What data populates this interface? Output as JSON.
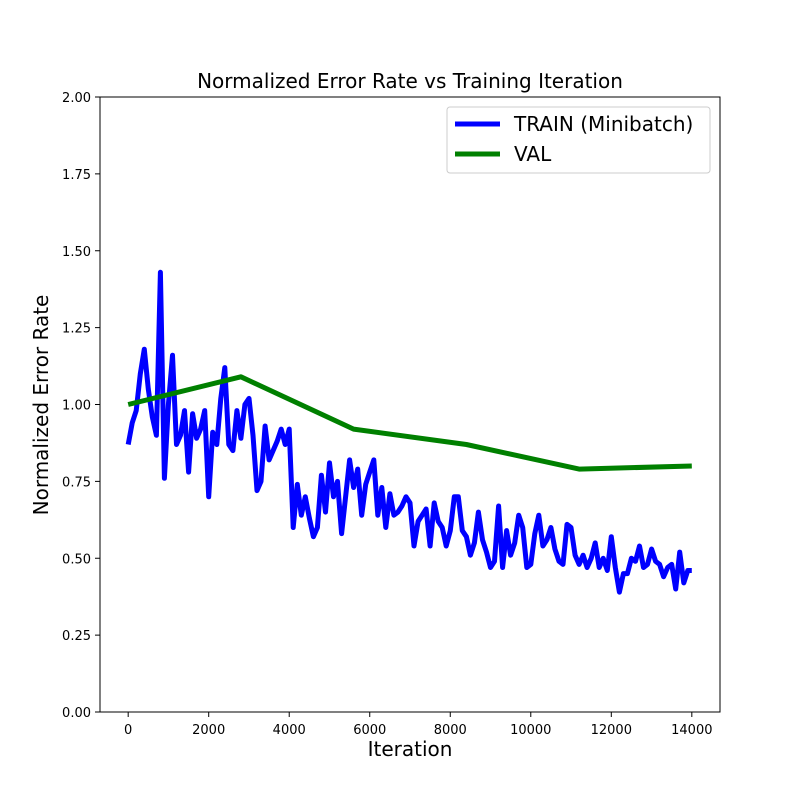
{
  "chart_data": {
    "type": "line",
    "title": "Normalized Error Rate vs Training Iteration",
    "xlabel": "Iteration",
    "ylabel": "Normalized Error Rate",
    "xlim": [
      -700,
      14700
    ],
    "ylim": [
      0,
      2.0
    ],
    "xticks": [
      0,
      2000,
      4000,
      6000,
      8000,
      10000,
      12000,
      14000
    ],
    "xtick_labels": [
      "0",
      "2000",
      "4000",
      "6000",
      "8000",
      "10000",
      "12000",
      "14000"
    ],
    "yticks": [
      0,
      0.25,
      0.5,
      0.75,
      1.0,
      1.25,
      1.5,
      1.75,
      2.0
    ],
    "ytick_labels": [
      "0.00",
      "0.25",
      "0.50",
      "0.75",
      "1.00",
      "1.25",
      "1.50",
      "1.75",
      "2.00"
    ],
    "grid": false,
    "legend_position": "top-right",
    "series": [
      {
        "name": "TRAIN (Minibatch)",
        "color": "#0000ff",
        "x": [
          0,
          100,
          200,
          300,
          400,
          500,
          600,
          700,
          800,
          900,
          1000,
          1100,
          1200,
          1300,
          1400,
          1500,
          1600,
          1700,
          1800,
          1900,
          2000,
          2100,
          2200,
          2300,
          2400,
          2500,
          2600,
          2700,
          2800,
          2900,
          3000,
          3100,
          3200,
          3300,
          3400,
          3500,
          3600,
          3700,
          3800,
          3900,
          4000,
          4100,
          4200,
          4300,
          4400,
          4500,
          4600,
          4700,
          4800,
          4900,
          5000,
          5100,
          5200,
          5300,
          5400,
          5500,
          5600,
          5700,
          5800,
          5900,
          6000,
          6100,
          6200,
          6300,
          6400,
          6500,
          6600,
          6700,
          6800,
          6900,
          7000,
          7100,
          7200,
          7300,
          7400,
          7500,
          7600,
          7700,
          7800,
          7900,
          8000,
          8100,
          8200,
          8300,
          8400,
          8500,
          8600,
          8700,
          8800,
          8900,
          9000,
          9100,
          9200,
          9300,
          9400,
          9500,
          9600,
          9700,
          9800,
          9900,
          10000,
          10100,
          10200,
          10300,
          10400,
          10500,
          10600,
          10700,
          10800,
          10900,
          11000,
          11100,
          11200,
          11300,
          11400,
          11500,
          11600,
          11700,
          11800,
          11900,
          12000,
          12100,
          12200,
          12300,
          12400,
          12500,
          12600,
          12700,
          12800,
          12900,
          13000,
          13100,
          13200,
          13300,
          13400,
          13500,
          13600,
          13700,
          13800,
          13900,
          14000
        ],
        "y": [
          0.87,
          0.94,
          0.98,
          1.1,
          1.18,
          1.05,
          0.96,
          0.9,
          1.43,
          0.76,
          1.0,
          1.16,
          0.87,
          0.9,
          0.98,
          0.78,
          0.97,
          0.89,
          0.92,
          0.98,
          0.7,
          0.91,
          0.87,
          1.02,
          1.12,
          0.87,
          0.85,
          0.98,
          0.89,
          1.0,
          1.02,
          0.9,
          0.72,
          0.75,
          0.93,
          0.82,
          0.85,
          0.88,
          0.92,
          0.87,
          0.92,
          0.6,
          0.74,
          0.64,
          0.7,
          0.63,
          0.57,
          0.6,
          0.77,
          0.65,
          0.81,
          0.7,
          0.75,
          0.58,
          0.7,
          0.82,
          0.73,
          0.79,
          0.64,
          0.74,
          0.78,
          0.82,
          0.64,
          0.73,
          0.6,
          0.71,
          0.64,
          0.65,
          0.67,
          0.7,
          0.68,
          0.54,
          0.62,
          0.64,
          0.66,
          0.54,
          0.68,
          0.62,
          0.6,
          0.54,
          0.59,
          0.7,
          0.7,
          0.59,
          0.57,
          0.51,
          0.55,
          0.65,
          0.56,
          0.52,
          0.47,
          0.49,
          0.67,
          0.47,
          0.59,
          0.51,
          0.55,
          0.64,
          0.6,
          0.47,
          0.48,
          0.58,
          0.64,
          0.54,
          0.56,
          0.6,
          0.53,
          0.49,
          0.48,
          0.61,
          0.6,
          0.51,
          0.48,
          0.51,
          0.47,
          0.5,
          0.55,
          0.47,
          0.5,
          0.46,
          0.57,
          0.47,
          0.39,
          0.45,
          0.45,
          0.5,
          0.49,
          0.54,
          0.47,
          0.48,
          0.53,
          0.49,
          0.48,
          0.44,
          0.47,
          0.48,
          0.4,
          0.52,
          0.42,
          0.46,
          0.46
        ]
      },
      {
        "name": "VAL",
        "color": "#008000",
        "x": [
          0,
          2800,
          5600,
          8400,
          11200,
          14000
        ],
        "y": [
          1.0,
          1.09,
          0.92,
          0.87,
          0.79,
          0.8
        ]
      }
    ]
  }
}
